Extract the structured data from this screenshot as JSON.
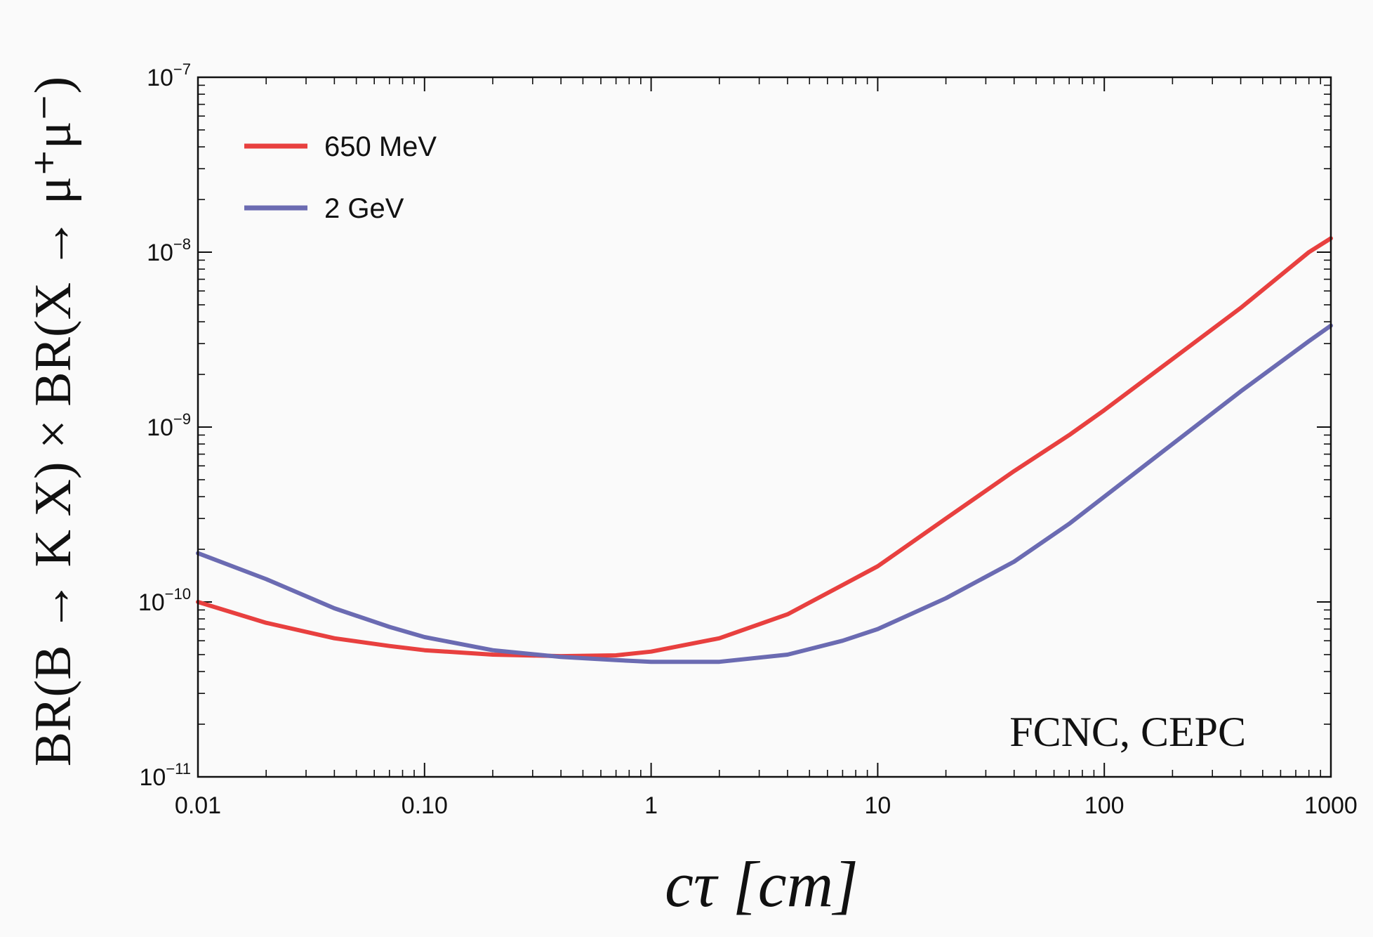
{
  "chart_data": {
    "type": "line",
    "xlabel": "cτ [cm]",
    "ylabel": "BR(B → K X) × BR(X → μ⁺μ⁻)",
    "xscale": "log",
    "yscale": "log",
    "xlim": [
      0.01,
      1000
    ],
    "ylim": [
      1e-11,
      1e-07
    ],
    "grid": false,
    "legend_position": "top-left",
    "annotation": "FCNC, CEPC",
    "x_ticks": [
      {
        "value": 0.01,
        "label": "0.01"
      },
      {
        "value": 0.1,
        "label": "0.10"
      },
      {
        "value": 1,
        "label": "1"
      },
      {
        "value": 10,
        "label": "10"
      },
      {
        "value": 100,
        "label": "100"
      },
      {
        "value": 1000,
        "label": "1000"
      }
    ],
    "y_ticks": [
      {
        "value": 1e-11,
        "base": "10",
        "exp": "−11"
      },
      {
        "value": 1e-10,
        "base": "10",
        "exp": "−10"
      },
      {
        "value": 1e-09,
        "base": "10",
        "exp": "−9"
      },
      {
        "value": 1e-08,
        "base": "10",
        "exp": "−8"
      },
      {
        "value": 1e-07,
        "base": "10",
        "exp": "−7"
      }
    ],
    "series": [
      {
        "name": "650 MeV",
        "color": "#e8403f",
        "x": [
          0.01,
          0.02,
          0.04,
          0.07,
          0.1,
          0.2,
          0.4,
          0.7,
          1,
          2,
          4,
          7,
          10,
          20,
          40,
          70,
          100,
          200,
          400,
          800,
          1000
        ],
        "y": [
          1e-10,
          7.6e-11,
          6.2e-11,
          5.6e-11,
          5.3e-11,
          5e-11,
          4.9e-11,
          4.95e-11,
          5.2e-11,
          6.2e-11,
          8.5e-11,
          1.25e-10,
          1.6e-10,
          3e-10,
          5.6e-10,
          9e-10,
          1.25e-09,
          2.45e-09,
          4.8e-09,
          1e-08,
          1.2e-08
        ]
      },
      {
        "name": "2 GeV",
        "color": "#6b6bb2",
        "x": [
          0.01,
          0.02,
          0.04,
          0.07,
          0.1,
          0.2,
          0.4,
          0.7,
          1,
          2,
          4,
          7,
          10,
          20,
          40,
          70,
          100,
          200,
          400,
          800,
          1000
        ],
        "y": [
          1.9e-10,
          1.35e-10,
          9.2e-11,
          7.2e-11,
          6.3e-11,
          5.3e-11,
          4.85e-11,
          4.65e-11,
          4.55e-11,
          4.55e-11,
          5e-11,
          6e-11,
          7e-11,
          1.05e-10,
          1.7e-10,
          2.8e-10,
          4e-10,
          8e-10,
          1.6e-09,
          3.1e-09,
          3.8e-09
        ]
      }
    ]
  }
}
